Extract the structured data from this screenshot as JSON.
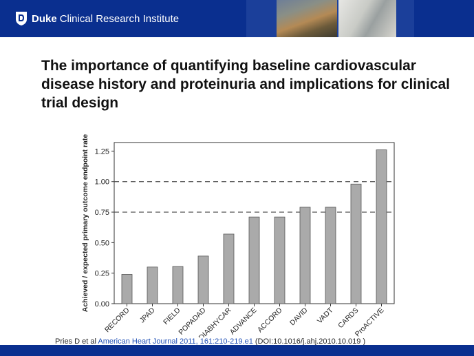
{
  "header": {
    "brand": "Duke",
    "institute": "Clinical Research Institute",
    "colors": {
      "bar": "#0a2f8f"
    }
  },
  "slide": {
    "title": "The importance of quantifying baseline cardiovascular disease history and proteinuria and implications for clinical trial design"
  },
  "chart_data": {
    "type": "bar",
    "categories": [
      "RECORD",
      "JPAD",
      "FIELD",
      "POPADAD",
      "DIABHYCAR",
      "ADVANCE",
      "ACCORD",
      "DAVID",
      "VADT",
      "CARDS",
      "ProACTIVE"
    ],
    "values": [
      0.24,
      0.3,
      0.305,
      0.39,
      0.57,
      0.71,
      0.71,
      0.79,
      0.79,
      0.98,
      1.26
    ],
    "ylabel": "Achieved / expected primary outcome endpoint rate",
    "xlabel": "",
    "ylim": [
      0,
      1.32
    ],
    "yticks": [
      "0.00",
      "0.25",
      "0.50",
      "0.75",
      "1.00",
      "1.25"
    ],
    "reference_lines": [
      1.0,
      0.75
    ],
    "bar_color": "#aaaaaa",
    "grid": false
  },
  "citation": {
    "authors": "Pries D et al",
    "journal": "American Heart Journal 2011, 161:210-219.e1",
    "doi": "(DOI:10.1016/j.ahj.2010.10.019 )"
  }
}
